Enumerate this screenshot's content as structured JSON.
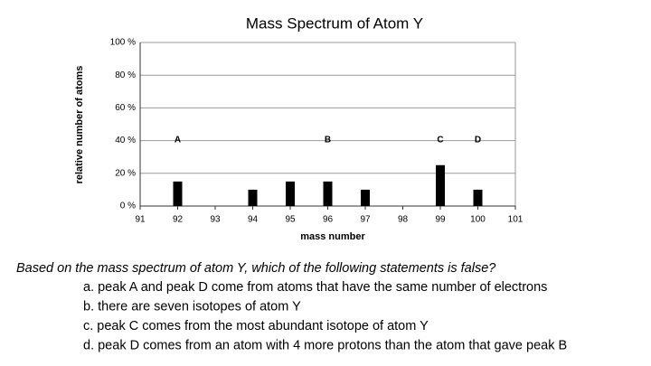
{
  "chart_data": {
    "type": "bar",
    "title": "Mass Spectrum of Atom Y",
    "x_label": "mass number",
    "y_label": "relative number of atoms",
    "x": [
      92,
      94,
      95,
      96,
      97,
      99,
      100
    ],
    "values": [
      15,
      10,
      15,
      15,
      10,
      25,
      10
    ],
    "color": "#000000",
    "xlim": [
      91,
      101
    ],
    "xticks": [
      91,
      92,
      93,
      94,
      95,
      96,
      97,
      98,
      99,
      100,
      101
    ],
    "ylim": [
      0,
      100
    ],
    "yticks": [
      {
        "value": 0,
        "label": "0 %"
      },
      {
        "value": 20,
        "label": "20 %"
      },
      {
        "value": 40,
        "label": "40 %"
      },
      {
        "value": 60,
        "label": "60 %"
      },
      {
        "value": 80,
        "label": "80 %"
      },
      {
        "value": 100,
        "label": "100 %"
      }
    ],
    "grid": true,
    "annotations": [
      {
        "text": "A",
        "x": 92
      },
      {
        "text": "B",
        "x": 96
      },
      {
        "text": "C",
        "x": 99
      },
      {
        "text": "D",
        "x": 100
      }
    ]
  },
  "question": {
    "prompt": "Based on the mass spectrum of atom Y, which of the following statements is false?",
    "options": [
      "a. peak A and peak D come from atoms that have the same number of electrons",
      "b. there are seven isotopes of atom Y",
      "c. peak C comes from the most abundant isotope of atom Y",
      "d. peak D comes from an atom with 4 more protons than the atom that gave peak B"
    ]
  }
}
